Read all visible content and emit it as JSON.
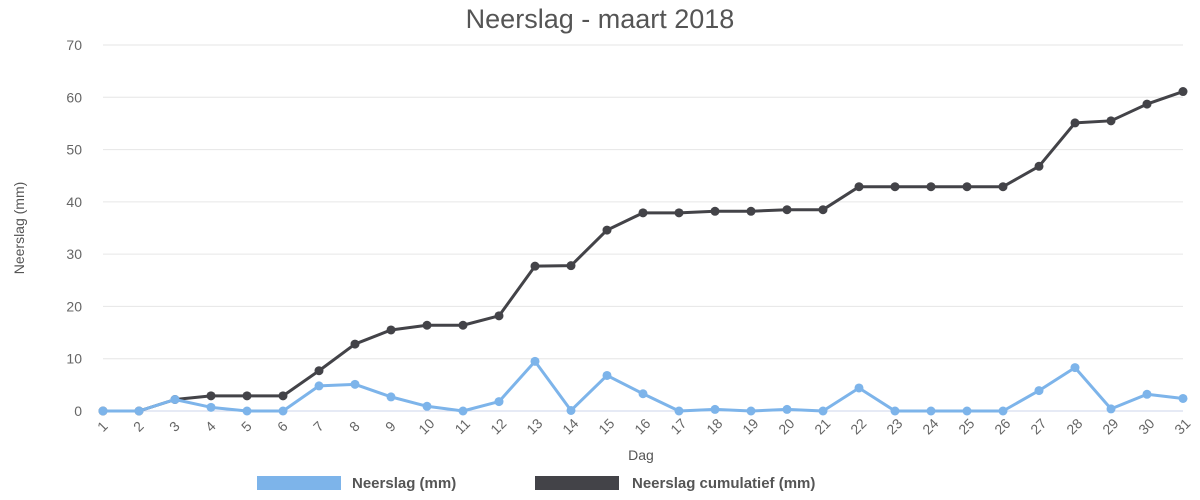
{
  "chart_data": {
    "type": "line",
    "title": "Neerslag - maart 2018",
    "xlabel": "Dag",
    "ylabel": "Neerslag (mm)",
    "ylim": [
      0,
      70
    ],
    "y_ticks": [
      0,
      10,
      20,
      30,
      40,
      50,
      60,
      70
    ],
    "grid": true,
    "legend_position": "bottom",
    "categories": [
      "1",
      "2",
      "3",
      "4",
      "5",
      "6",
      "7",
      "8",
      "9",
      "10",
      "11",
      "12",
      "13",
      "14",
      "15",
      "16",
      "17",
      "18",
      "19",
      "20",
      "21",
      "22",
      "23",
      "24",
      "25",
      "26",
      "27",
      "28",
      "29",
      "30",
      "31"
    ],
    "series": [
      {
        "name": "Neerslag (mm)",
        "color": "#7db4ea",
        "values": [
          0,
          0,
          2.2,
          0.7,
          0,
          0,
          4.8,
          5.1,
          2.7,
          0.9,
          0,
          1.8,
          9.5,
          0.1,
          6.8,
          3.3,
          0,
          0.3,
          0,
          0.3,
          0,
          4.4,
          0,
          0,
          0,
          0,
          3.9,
          8.3,
          0.4,
          3.2,
          2.4
        ]
      },
      {
        "name": "Neerslag cumulatief (mm)",
        "color": "#434348",
        "values": [
          0,
          0,
          2.2,
          2.9,
          2.9,
          2.9,
          7.7,
          12.8,
          15.5,
          16.4,
          16.4,
          18.2,
          27.7,
          27.8,
          34.6,
          37.9,
          37.9,
          38.2,
          38.2,
          38.5,
          38.5,
          42.9,
          42.9,
          42.9,
          42.9,
          42.9,
          46.8,
          55.1,
          55.5,
          58.7,
          61.1
        ]
      }
    ]
  }
}
